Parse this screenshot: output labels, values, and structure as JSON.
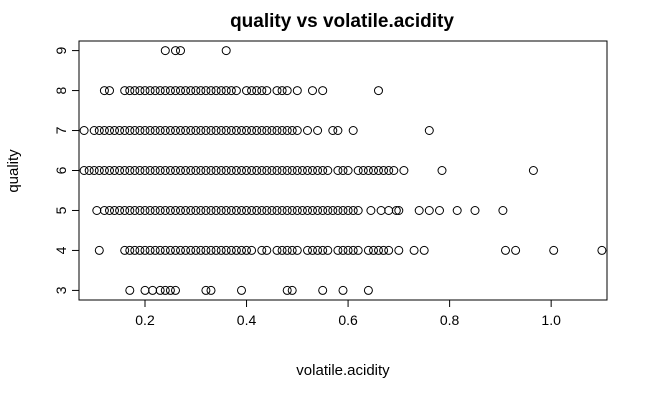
{
  "chart_data": {
    "type": "scatter",
    "title": "quality vs volatile.acidity",
    "xlabel": "volatile.acidity",
    "ylabel": "quality",
    "xlim": [
      0.07,
      1.11
    ],
    "ylim": [
      2.76,
      9.24
    ],
    "x_ticks": [
      0.2,
      0.4,
      0.6,
      0.8,
      1.0
    ],
    "x_tick_labels": [
      "0.2",
      "0.4",
      "0.6",
      "0.8",
      "1.0"
    ],
    "y_ticks": [
      3,
      4,
      5,
      6,
      7,
      8,
      9
    ],
    "y_tick_labels": [
      "3",
      "4",
      "5",
      "6",
      "7",
      "8",
      "9"
    ],
    "grid": false,
    "legend": "none",
    "series": [
      {
        "values": [
          {
            "x": 0.24,
            "y": 9
          },
          {
            "x": 0.26,
            "y": 9
          },
          {
            "x": 0.27,
            "y": 9
          },
          {
            "x": 0.36,
            "y": 9
          },
          {
            "x": 0.12,
            "y": 8
          },
          {
            "x": 0.13,
            "y": 8
          },
          {
            "x": 0.16,
            "y": 8
          },
          {
            "x": 0.17,
            "y": 8
          },
          {
            "x": 0.18,
            "y": 8
          },
          {
            "x": 0.19,
            "y": 8
          },
          {
            "x": 0.2,
            "y": 8
          },
          {
            "x": 0.21,
            "y": 8
          },
          {
            "x": 0.22,
            "y": 8
          },
          {
            "x": 0.23,
            "y": 8
          },
          {
            "x": 0.24,
            "y": 8
          },
          {
            "x": 0.25,
            "y": 8
          },
          {
            "x": 0.26,
            "y": 8
          },
          {
            "x": 0.27,
            "y": 8
          },
          {
            "x": 0.28,
            "y": 8
          },
          {
            "x": 0.29,
            "y": 8
          },
          {
            "x": 0.3,
            "y": 8
          },
          {
            "x": 0.31,
            "y": 8
          },
          {
            "x": 0.32,
            "y": 8
          },
          {
            "x": 0.33,
            "y": 8
          },
          {
            "x": 0.34,
            "y": 8
          },
          {
            "x": 0.35,
            "y": 8
          },
          {
            "x": 0.36,
            "y": 8
          },
          {
            "x": 0.37,
            "y": 8
          },
          {
            "x": 0.38,
            "y": 8
          },
          {
            "x": 0.4,
            "y": 8
          },
          {
            "x": 0.41,
            "y": 8
          },
          {
            "x": 0.42,
            "y": 8
          },
          {
            "x": 0.43,
            "y": 8
          },
          {
            "x": 0.44,
            "y": 8
          },
          {
            "x": 0.46,
            "y": 8
          },
          {
            "x": 0.47,
            "y": 8
          },
          {
            "x": 0.48,
            "y": 8
          },
          {
            "x": 0.5,
            "y": 8
          },
          {
            "x": 0.53,
            "y": 8
          },
          {
            "x": 0.55,
            "y": 8
          },
          {
            "x": 0.66,
            "y": 8
          },
          {
            "x": 0.08,
            "y": 7
          },
          {
            "x": 0.1,
            "y": 7
          },
          {
            "x": 0.11,
            "y": 7
          },
          {
            "x": 0.12,
            "y": 7
          },
          {
            "x": 0.13,
            "y": 7
          },
          {
            "x": 0.14,
            "y": 7
          },
          {
            "x": 0.15,
            "y": 7
          },
          {
            "x": 0.16,
            "y": 7
          },
          {
            "x": 0.17,
            "y": 7
          },
          {
            "x": 0.18,
            "y": 7
          },
          {
            "x": 0.19,
            "y": 7
          },
          {
            "x": 0.2,
            "y": 7
          },
          {
            "x": 0.21,
            "y": 7
          },
          {
            "x": 0.22,
            "y": 7
          },
          {
            "x": 0.23,
            "y": 7
          },
          {
            "x": 0.24,
            "y": 7
          },
          {
            "x": 0.25,
            "y": 7
          },
          {
            "x": 0.26,
            "y": 7
          },
          {
            "x": 0.27,
            "y": 7
          },
          {
            "x": 0.28,
            "y": 7
          },
          {
            "x": 0.29,
            "y": 7
          },
          {
            "x": 0.3,
            "y": 7
          },
          {
            "x": 0.31,
            "y": 7
          },
          {
            "x": 0.32,
            "y": 7
          },
          {
            "x": 0.33,
            "y": 7
          },
          {
            "x": 0.34,
            "y": 7
          },
          {
            "x": 0.35,
            "y": 7
          },
          {
            "x": 0.36,
            "y": 7
          },
          {
            "x": 0.37,
            "y": 7
          },
          {
            "x": 0.38,
            "y": 7
          },
          {
            "x": 0.39,
            "y": 7
          },
          {
            "x": 0.4,
            "y": 7
          },
          {
            "x": 0.41,
            "y": 7
          },
          {
            "x": 0.42,
            "y": 7
          },
          {
            "x": 0.43,
            "y": 7
          },
          {
            "x": 0.44,
            "y": 7
          },
          {
            "x": 0.45,
            "y": 7
          },
          {
            "x": 0.46,
            "y": 7
          },
          {
            "x": 0.47,
            "y": 7
          },
          {
            "x": 0.48,
            "y": 7
          },
          {
            "x": 0.49,
            "y": 7
          },
          {
            "x": 0.5,
            "y": 7
          },
          {
            "x": 0.52,
            "y": 7
          },
          {
            "x": 0.54,
            "y": 7
          },
          {
            "x": 0.57,
            "y": 7
          },
          {
            "x": 0.58,
            "y": 7
          },
          {
            "x": 0.61,
            "y": 7
          },
          {
            "x": 0.76,
            "y": 7
          },
          {
            "x": 0.08,
            "y": 6
          },
          {
            "x": 0.09,
            "y": 6
          },
          {
            "x": 0.1,
            "y": 6
          },
          {
            "x": 0.11,
            "y": 6
          },
          {
            "x": 0.12,
            "y": 6
          },
          {
            "x": 0.13,
            "y": 6
          },
          {
            "x": 0.14,
            "y": 6
          },
          {
            "x": 0.15,
            "y": 6
          },
          {
            "x": 0.16,
            "y": 6
          },
          {
            "x": 0.17,
            "y": 6
          },
          {
            "x": 0.18,
            "y": 6
          },
          {
            "x": 0.19,
            "y": 6
          },
          {
            "x": 0.2,
            "y": 6
          },
          {
            "x": 0.21,
            "y": 6
          },
          {
            "x": 0.22,
            "y": 6
          },
          {
            "x": 0.23,
            "y": 6
          },
          {
            "x": 0.24,
            "y": 6
          },
          {
            "x": 0.25,
            "y": 6
          },
          {
            "x": 0.26,
            "y": 6
          },
          {
            "x": 0.27,
            "y": 6
          },
          {
            "x": 0.28,
            "y": 6
          },
          {
            "x": 0.29,
            "y": 6
          },
          {
            "x": 0.3,
            "y": 6
          },
          {
            "x": 0.31,
            "y": 6
          },
          {
            "x": 0.32,
            "y": 6
          },
          {
            "x": 0.33,
            "y": 6
          },
          {
            "x": 0.34,
            "y": 6
          },
          {
            "x": 0.35,
            "y": 6
          },
          {
            "x": 0.36,
            "y": 6
          },
          {
            "x": 0.37,
            "y": 6
          },
          {
            "x": 0.38,
            "y": 6
          },
          {
            "x": 0.39,
            "y": 6
          },
          {
            "x": 0.4,
            "y": 6
          },
          {
            "x": 0.41,
            "y": 6
          },
          {
            "x": 0.42,
            "y": 6
          },
          {
            "x": 0.43,
            "y": 6
          },
          {
            "x": 0.44,
            "y": 6
          },
          {
            "x": 0.45,
            "y": 6
          },
          {
            "x": 0.46,
            "y": 6
          },
          {
            "x": 0.47,
            "y": 6
          },
          {
            "x": 0.48,
            "y": 6
          },
          {
            "x": 0.49,
            "y": 6
          },
          {
            "x": 0.5,
            "y": 6
          },
          {
            "x": 0.51,
            "y": 6
          },
          {
            "x": 0.52,
            "y": 6
          },
          {
            "x": 0.53,
            "y": 6
          },
          {
            "x": 0.54,
            "y": 6
          },
          {
            "x": 0.55,
            "y": 6
          },
          {
            "x": 0.56,
            "y": 6
          },
          {
            "x": 0.58,
            "y": 6
          },
          {
            "x": 0.59,
            "y": 6
          },
          {
            "x": 0.6,
            "y": 6
          },
          {
            "x": 0.62,
            "y": 6
          },
          {
            "x": 0.63,
            "y": 6
          },
          {
            "x": 0.64,
            "y": 6
          },
          {
            "x": 0.65,
            "y": 6
          },
          {
            "x": 0.66,
            "y": 6
          },
          {
            "x": 0.67,
            "y": 6
          },
          {
            "x": 0.68,
            "y": 6
          },
          {
            "x": 0.69,
            "y": 6
          },
          {
            "x": 0.71,
            "y": 6
          },
          {
            "x": 0.785,
            "y": 6
          },
          {
            "x": 0.965,
            "y": 6
          },
          {
            "x": 0.105,
            "y": 5
          },
          {
            "x": 0.12,
            "y": 5
          },
          {
            "x": 0.13,
            "y": 5
          },
          {
            "x": 0.14,
            "y": 5
          },
          {
            "x": 0.15,
            "y": 5
          },
          {
            "x": 0.16,
            "y": 5
          },
          {
            "x": 0.17,
            "y": 5
          },
          {
            "x": 0.18,
            "y": 5
          },
          {
            "x": 0.19,
            "y": 5
          },
          {
            "x": 0.2,
            "y": 5
          },
          {
            "x": 0.21,
            "y": 5
          },
          {
            "x": 0.22,
            "y": 5
          },
          {
            "x": 0.23,
            "y": 5
          },
          {
            "x": 0.24,
            "y": 5
          },
          {
            "x": 0.25,
            "y": 5
          },
          {
            "x": 0.26,
            "y": 5
          },
          {
            "x": 0.27,
            "y": 5
          },
          {
            "x": 0.28,
            "y": 5
          },
          {
            "x": 0.29,
            "y": 5
          },
          {
            "x": 0.3,
            "y": 5
          },
          {
            "x": 0.31,
            "y": 5
          },
          {
            "x": 0.32,
            "y": 5
          },
          {
            "x": 0.33,
            "y": 5
          },
          {
            "x": 0.34,
            "y": 5
          },
          {
            "x": 0.35,
            "y": 5
          },
          {
            "x": 0.36,
            "y": 5
          },
          {
            "x": 0.37,
            "y": 5
          },
          {
            "x": 0.38,
            "y": 5
          },
          {
            "x": 0.39,
            "y": 5
          },
          {
            "x": 0.4,
            "y": 5
          },
          {
            "x": 0.41,
            "y": 5
          },
          {
            "x": 0.42,
            "y": 5
          },
          {
            "x": 0.43,
            "y": 5
          },
          {
            "x": 0.44,
            "y": 5
          },
          {
            "x": 0.45,
            "y": 5
          },
          {
            "x": 0.46,
            "y": 5
          },
          {
            "x": 0.47,
            "y": 5
          },
          {
            "x": 0.48,
            "y": 5
          },
          {
            "x": 0.49,
            "y": 5
          },
          {
            "x": 0.5,
            "y": 5
          },
          {
            "x": 0.51,
            "y": 5
          },
          {
            "x": 0.52,
            "y": 5
          },
          {
            "x": 0.53,
            "y": 5
          },
          {
            "x": 0.54,
            "y": 5
          },
          {
            "x": 0.55,
            "y": 5
          },
          {
            "x": 0.56,
            "y": 5
          },
          {
            "x": 0.57,
            "y": 5
          },
          {
            "x": 0.58,
            "y": 5
          },
          {
            "x": 0.59,
            "y": 5
          },
          {
            "x": 0.6,
            "y": 5
          },
          {
            "x": 0.61,
            "y": 5
          },
          {
            "x": 0.62,
            "y": 5
          },
          {
            "x": 0.645,
            "y": 5
          },
          {
            "x": 0.665,
            "y": 5
          },
          {
            "x": 0.68,
            "y": 5
          },
          {
            "x": 0.695,
            "y": 5
          },
          {
            "x": 0.7,
            "y": 5
          },
          {
            "x": 0.74,
            "y": 5
          },
          {
            "x": 0.76,
            "y": 5
          },
          {
            "x": 0.78,
            "y": 5
          },
          {
            "x": 0.815,
            "y": 5
          },
          {
            "x": 0.85,
            "y": 5
          },
          {
            "x": 0.905,
            "y": 5
          },
          {
            "x": 0.11,
            "y": 4
          },
          {
            "x": 0.16,
            "y": 4
          },
          {
            "x": 0.17,
            "y": 4
          },
          {
            "x": 0.18,
            "y": 4
          },
          {
            "x": 0.19,
            "y": 4
          },
          {
            "x": 0.2,
            "y": 4
          },
          {
            "x": 0.21,
            "y": 4
          },
          {
            "x": 0.22,
            "y": 4
          },
          {
            "x": 0.23,
            "y": 4
          },
          {
            "x": 0.24,
            "y": 4
          },
          {
            "x": 0.25,
            "y": 4
          },
          {
            "x": 0.26,
            "y": 4
          },
          {
            "x": 0.27,
            "y": 4
          },
          {
            "x": 0.28,
            "y": 4
          },
          {
            "x": 0.29,
            "y": 4
          },
          {
            "x": 0.3,
            "y": 4
          },
          {
            "x": 0.31,
            "y": 4
          },
          {
            "x": 0.32,
            "y": 4
          },
          {
            "x": 0.33,
            "y": 4
          },
          {
            "x": 0.34,
            "y": 4
          },
          {
            "x": 0.35,
            "y": 4
          },
          {
            "x": 0.36,
            "y": 4
          },
          {
            "x": 0.37,
            "y": 4
          },
          {
            "x": 0.38,
            "y": 4
          },
          {
            "x": 0.39,
            "y": 4
          },
          {
            "x": 0.4,
            "y": 4
          },
          {
            "x": 0.41,
            "y": 4
          },
          {
            "x": 0.43,
            "y": 4
          },
          {
            "x": 0.44,
            "y": 4
          },
          {
            "x": 0.46,
            "y": 4
          },
          {
            "x": 0.47,
            "y": 4
          },
          {
            "x": 0.48,
            "y": 4
          },
          {
            "x": 0.49,
            "y": 4
          },
          {
            "x": 0.5,
            "y": 4
          },
          {
            "x": 0.52,
            "y": 4
          },
          {
            "x": 0.53,
            "y": 4
          },
          {
            "x": 0.54,
            "y": 4
          },
          {
            "x": 0.55,
            "y": 4
          },
          {
            "x": 0.56,
            "y": 4
          },
          {
            "x": 0.58,
            "y": 4
          },
          {
            "x": 0.59,
            "y": 4
          },
          {
            "x": 0.6,
            "y": 4
          },
          {
            "x": 0.61,
            "y": 4
          },
          {
            "x": 0.62,
            "y": 4
          },
          {
            "x": 0.64,
            "y": 4
          },
          {
            "x": 0.65,
            "y": 4
          },
          {
            "x": 0.66,
            "y": 4
          },
          {
            "x": 0.67,
            "y": 4
          },
          {
            "x": 0.68,
            "y": 4
          },
          {
            "x": 0.7,
            "y": 4
          },
          {
            "x": 0.73,
            "y": 4
          },
          {
            "x": 0.75,
            "y": 4
          },
          {
            "x": 0.91,
            "y": 4
          },
          {
            "x": 0.93,
            "y": 4
          },
          {
            "x": 1.005,
            "y": 4
          },
          {
            "x": 1.1,
            "y": 4
          },
          {
            "x": 0.17,
            "y": 3
          },
          {
            "x": 0.2,
            "y": 3
          },
          {
            "x": 0.215,
            "y": 3
          },
          {
            "x": 0.23,
            "y": 3
          },
          {
            "x": 0.24,
            "y": 3
          },
          {
            "x": 0.25,
            "y": 3
          },
          {
            "x": 0.26,
            "y": 3
          },
          {
            "x": 0.32,
            "y": 3
          },
          {
            "x": 0.33,
            "y": 3
          },
          {
            "x": 0.39,
            "y": 3
          },
          {
            "x": 0.48,
            "y": 3
          },
          {
            "x": 0.49,
            "y": 3
          },
          {
            "x": 0.55,
            "y": 3
          },
          {
            "x": 0.59,
            "y": 3
          },
          {
            "x": 0.64,
            "y": 3
          }
        ]
      }
    ]
  }
}
